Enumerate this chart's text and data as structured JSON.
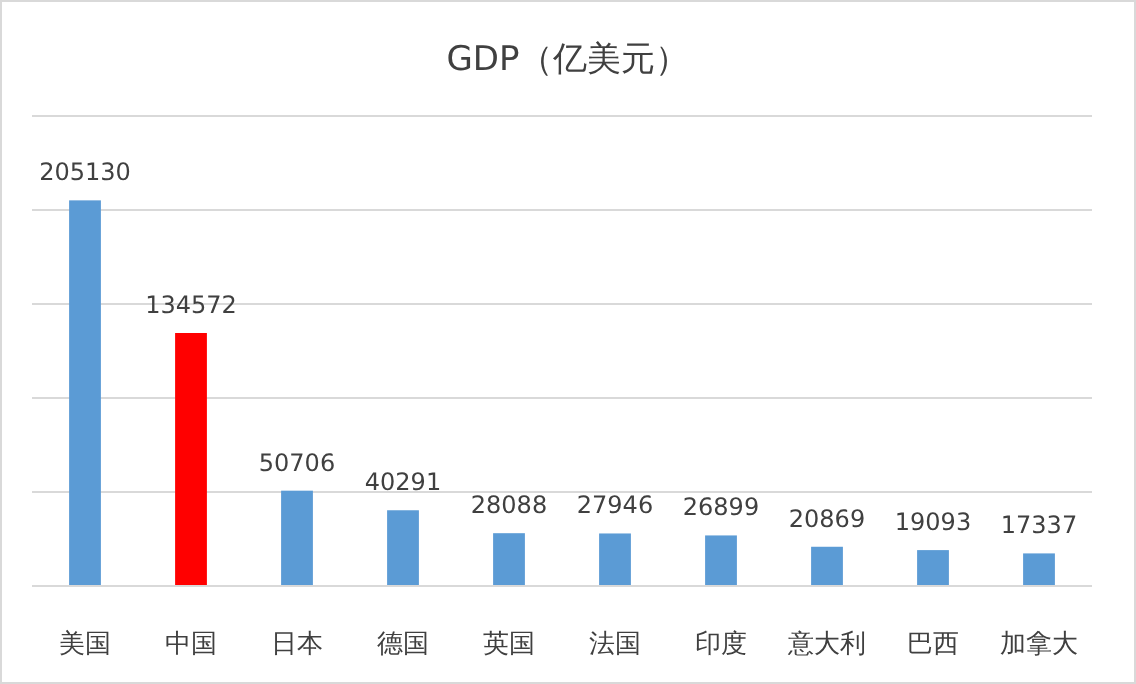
{
  "chart_data": {
    "type": "bar",
    "title": "GDP（亿美元）",
    "categories": [
      "美国",
      "中国",
      "日本",
      "德国",
      "英国",
      "法国",
      "印度",
      "意大利",
      "巴西",
      "加拿大"
    ],
    "values": [
      205130,
      134572,
      50706,
      40291,
      28088,
      27946,
      26899,
      20869,
      19093,
      17337
    ],
    "colors": [
      "#5b9bd5",
      "#ff0000",
      "#5b9bd5",
      "#5b9bd5",
      "#5b9bd5",
      "#5b9bd5",
      "#5b9bd5",
      "#5b9bd5",
      "#5b9bd5",
      "#5b9bd5"
    ],
    "ylim": [
      0,
      250000
    ],
    "yticks": [
      {
        "value": 0,
        "label": null
      },
      {
        "value": 50000,
        "label": null
      },
      {
        "value": 100000,
        "label": null
      },
      {
        "value": 150000,
        "label": null
      },
      {
        "value": 200000,
        "label": null
      },
      {
        "value": 250000,
        "label": null
      }
    ],
    "tick_labels": "x",
    "grid": "y",
    "data_labels": true
  }
}
